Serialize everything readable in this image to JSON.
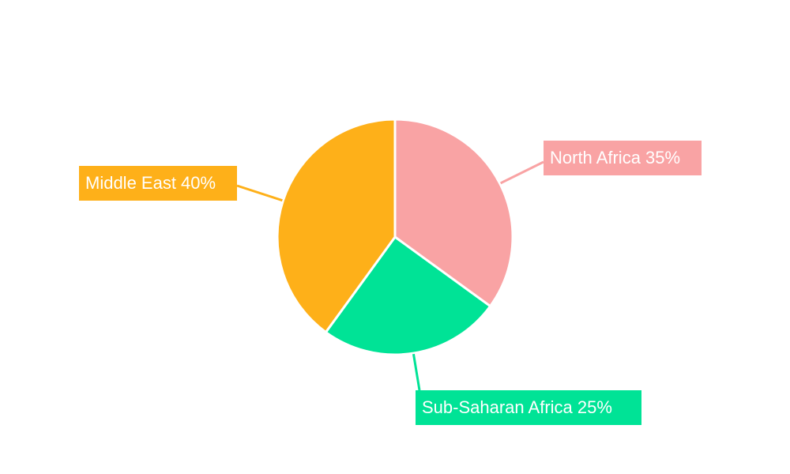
{
  "chart_data": {
    "type": "pie",
    "categories": [
      "North Africa",
      "Sub-Saharan Africa",
      "Middle East"
    ],
    "values": [
      35,
      25,
      40
    ],
    "colors": [
      "#F9A3A4",
      "#00E396",
      "#FEB019"
    ],
    "labels": [
      "North Africa 35%",
      "Sub-Saharan Africa 25%",
      "Middle East 40%"
    ],
    "start_angle": "top, clockwise",
    "legend": "none"
  }
}
